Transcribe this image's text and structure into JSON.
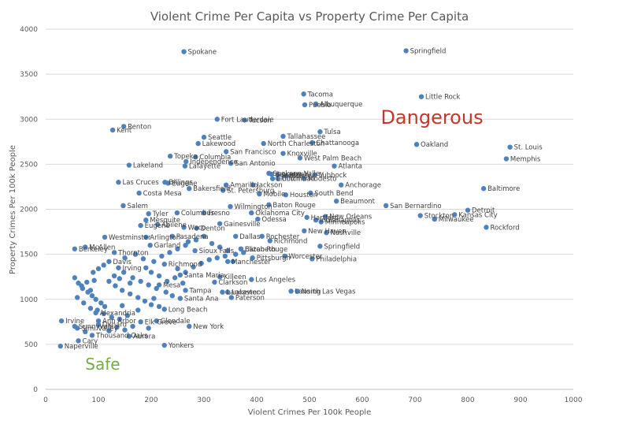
{
  "chart_data": {
    "type": "scatter",
    "title": "Violent Crime Per Capita vs Property Crime Per Capita",
    "xlabel": "Violent Crimes Per 100k People",
    "ylabel": "Property Crimes Per 100k People",
    "xlim": [
      0,
      1000
    ],
    "ylim": [
      0,
      4000
    ],
    "x_ticks": [
      0,
      100,
      200,
      300,
      400,
      500,
      600,
      700,
      800,
      900,
      1000
    ],
    "y_ticks": [
      0,
      500,
      1000,
      1500,
      2000,
      2500,
      3000,
      3500,
      4000
    ],
    "grid": "horizontal",
    "legend": "none",
    "colors": {
      "marker": "#4f81bd",
      "danger": "#c0392b",
      "safe": "#70ad47",
      "text": "#595959"
    },
    "annotations": [
      {
        "text": "Dangerous",
        "x": 635,
        "y": 2950,
        "color": "#c0392b"
      },
      {
        "text": "Safe",
        "x": 75,
        "y": 220,
        "color": "#70ad47"
      }
    ],
    "points": [
      {
        "label": "Spokane",
        "x": 262,
        "y": 3750
      },
      {
        "label": "Springfield",
        "x": 683,
        "y": 3760
      },
      {
        "label": "Tacoma",
        "x": 489,
        "y": 3280
      },
      {
        "label": "Pueblo",
        "x": 491,
        "y": 3160
      },
      {
        "label": "Albuquerque",
        "x": 512,
        "y": 3170
      },
      {
        "label": "Little Rock",
        "x": 712,
        "y": 3250
      },
      {
        "label": "Fort Lauderdale",
        "x": 325,
        "y": 3000
      },
      {
        "label": "Tucson",
        "x": 377,
        "y": 2990
      },
      {
        "label": "Renton",
        "x": 148,
        "y": 2920
      },
      {
        "label": "Kent",
        "x": 127,
        "y": 2880
      },
      {
        "label": "Tallahassee",
        "x": 450,
        "y": 2810
      },
      {
        "label": "Tulsa",
        "x": 520,
        "y": 2860
      },
      {
        "label": "Seattle",
        "x": 300,
        "y": 2800
      },
      {
        "label": "Lakewood",
        "x": 289,
        "y": 2730
      },
      {
        "label": "North Charleston",
        "x": 413,
        "y": 2730
      },
      {
        "label": "Chattanooga",
        "x": 505,
        "y": 2740
      },
      {
        "label": "Oakland",
        "x": 703,
        "y": 2720
      },
      {
        "label": "St. Louis",
        "x": 880,
        "y": 2690
      },
      {
        "label": "Memphis",
        "x": 873,
        "y": 2560
      },
      {
        "label": "San Francisco",
        "x": 342,
        "y": 2640
      },
      {
        "label": "Topeka",
        "x": 236,
        "y": 2590
      },
      {
        "label": "Columbia",
        "x": 284,
        "y": 2580
      },
      {
        "label": "Knoxville",
        "x": 450,
        "y": 2620
      },
      {
        "label": "West Palm Beach",
        "x": 482,
        "y": 2570
      },
      {
        "label": "Independence",
        "x": 266,
        "y": 2530
      },
      {
        "label": "Lakeland",
        "x": 158,
        "y": 2490
      },
      {
        "label": "Lafayette",
        "x": 264,
        "y": 2480
      },
      {
        "label": "San Antonio",
        "x": 351,
        "y": 2510
      },
      {
        "label": "Atlanta",
        "x": 547,
        "y": 2480
      },
      {
        "label": "Spokane Valley",
        "x": 423,
        "y": 2400
      },
      {
        "label": "Savannah",
        "x": 428,
        "y": 2390
      },
      {
        "label": "Austin",
        "x": 440,
        "y": 2380
      },
      {
        "label": "Mobile",
        "x": 455,
        "y": 2370
      },
      {
        "label": "Lubbock",
        "x": 510,
        "y": 2380
      },
      {
        "label": "Lincoln",
        "x": 430,
        "y": 2340
      },
      {
        "label": "Cincinnati",
        "x": 440,
        "y": 2340
      },
      {
        "label": "Modesto",
        "x": 490,
        "y": 2340
      },
      {
        "label": "Las Cruces",
        "x": 138,
        "y": 2300
      },
      {
        "label": "Billings",
        "x": 226,
        "y": 2300
      },
      {
        "label": "Eugene",
        "x": 232,
        "y": 2290
      },
      {
        "label": "Amarillo",
        "x": 342,
        "y": 2270
      },
      {
        "label": "Jackson",
        "x": 393,
        "y": 2270
      },
      {
        "label": "Anchorage",
        "x": 560,
        "y": 2270
      },
      {
        "label": "Baltimore",
        "x": 830,
        "y": 2230
      },
      {
        "label": "Bakersfield",
        "x": 272,
        "y": 2230
      },
      {
        "label": "St. Petersburg",
        "x": 336,
        "y": 2210
      },
      {
        "label": "Costa Mesa",
        "x": 177,
        "y": 2180
      },
      {
        "label": "Mobile",
        "x": 405,
        "y": 2170
      },
      {
        "label": "Houston",
        "x": 455,
        "y": 2160
      },
      {
        "label": "South Bend",
        "x": 502,
        "y": 2180
      },
      {
        "label": "Beaumont",
        "x": 551,
        "y": 2090
      },
      {
        "label": "Salem",
        "x": 147,
        "y": 2040
      },
      {
        "label": "Wilmington",
        "x": 350,
        "y": 2030
      },
      {
        "label": "Baton Rouge",
        "x": 423,
        "y": 2050
      },
      {
        "label": "San Bernardino",
        "x": 645,
        "y": 2040
      },
      {
        "label": "Detroit",
        "x": 800,
        "y": 1990
      },
      {
        "label": "Tyler",
        "x": 195,
        "y": 1950
      },
      {
        "label": "Columbus",
        "x": 249,
        "y": 1960
      },
      {
        "label": "Fresno",
        "x": 300,
        "y": 1960
      },
      {
        "label": "Oklahoma City",
        "x": 390,
        "y": 1960
      },
      {
        "label": "Stockton",
        "x": 710,
        "y": 1930
      },
      {
        "label": "Kansas City",
        "x": 775,
        "y": 1940
      },
      {
        "label": "Milwaukee",
        "x": 737,
        "y": 1890
      },
      {
        "label": "Mesquite",
        "x": 190,
        "y": 1880
      },
      {
        "label": "Odessa",
        "x": 402,
        "y": 1890
      },
      {
        "label": "Hartford",
        "x": 495,
        "y": 1910
      },
      {
        "label": "New Orleans",
        "x": 530,
        "y": 1920
      },
      {
        "label": "Indianapolis",
        "x": 512,
        "y": 1880
      },
      {
        "label": "Minneapolis",
        "x": 522,
        "y": 1860
      },
      {
        "label": "Rockford",
        "x": 835,
        "y": 1800
      },
      {
        "label": "Eugene",
        "x": 180,
        "y": 1820
      },
      {
        "label": "Abilene",
        "x": 212,
        "y": 1830
      },
      {
        "label": "Waco",
        "x": 262,
        "y": 1800
      },
      {
        "label": "Gainesville",
        "x": 330,
        "y": 1840
      },
      {
        "label": "Denton",
        "x": 286,
        "y": 1790
      },
      {
        "label": "New Haven",
        "x": 490,
        "y": 1760
      },
      {
        "label": "Nashville",
        "x": 532,
        "y": 1740
      },
      {
        "label": "Westminster",
        "x": 112,
        "y": 1690
      },
      {
        "label": "Arlington",
        "x": 190,
        "y": 1690
      },
      {
        "label": "Pasadena",
        "x": 240,
        "y": 1700
      },
      {
        "label": "Dallas",
        "x": 360,
        "y": 1700
      },
      {
        "label": "Rochester",
        "x": 410,
        "y": 1700
      },
      {
        "label": "Richmond",
        "x": 425,
        "y": 1650
      },
      {
        "label": "Springfield",
        "x": 520,
        "y": 1590
      },
      {
        "label": "McAllen",
        "x": 75,
        "y": 1580
      },
      {
        "label": "Berkeley",
        "x": 55,
        "y": 1560
      },
      {
        "label": "Garland",
        "x": 198,
        "y": 1600
      },
      {
        "label": "Elizabeth",
        "x": 370,
        "y": 1560
      },
      {
        "label": "Thornton",
        "x": 130,
        "y": 1520
      },
      {
        "label": "Sioux Falls",
        "x": 283,
        "y": 1540
      },
      {
        "label": "Worcester",
        "x": 453,
        "y": 1480
      },
      {
        "label": "Philadelphia",
        "x": 505,
        "y": 1450
      },
      {
        "label": "Manchester",
        "x": 345,
        "y": 1420
      },
      {
        "label": "Davis",
        "x": 120,
        "y": 1420
      },
      {
        "label": "Irving",
        "x": 138,
        "y": 1350
      },
      {
        "label": "Richmond",
        "x": 225,
        "y": 1390
      },
      {
        "label": "Santa Maria",
        "x": 255,
        "y": 1270
      },
      {
        "label": "Killeen",
        "x": 330,
        "y": 1250
      },
      {
        "label": "Los Angeles",
        "x": 390,
        "y": 1220
      },
      {
        "label": "Clarkson",
        "x": 320,
        "y": 1190
      },
      {
        "label": "Mesa",
        "x": 215,
        "y": 1160
      },
      {
        "label": "Tampa",
        "x": 265,
        "y": 1100
      },
      {
        "label": "Lancaster",
        "x": 335,
        "y": 1080
      },
      {
        "label": "Lakewood",
        "x": 345,
        "y": 1080
      },
      {
        "label": "Lansing",
        "x": 465,
        "y": 1090
      },
      {
        "label": "North Las Vegas",
        "x": 477,
        "y": 1090
      },
      {
        "label": "Paterson",
        "x": 352,
        "y": 1020
      },
      {
        "label": "Santa Ana",
        "x": 255,
        "y": 1010
      },
      {
        "label": "Alexandria",
        "x": 95,
        "y": 850
      },
      {
        "label": "Long Beach",
        "x": 225,
        "y": 890
      },
      {
        "label": "Ann Arbor",
        "x": 100,
        "y": 760
      },
      {
        "label": "Elk Grove",
        "x": 180,
        "y": 750
      },
      {
        "label": "Glendale",
        "x": 210,
        "y": 760
      },
      {
        "label": "Irvine",
        "x": 30,
        "y": 760
      },
      {
        "label": "Sunnyvale",
        "x": 55,
        "y": 700
      },
      {
        "label": "Oxnard",
        "x": 100,
        "y": 720
      },
      {
        "label": "New York",
        "x": 272,
        "y": 700
      },
      {
        "label": "Simi Valley",
        "x": 60,
        "y": 680
      },
      {
        "label": "Thousand Oaks",
        "x": 88,
        "y": 600
      },
      {
        "label": "Aurora",
        "x": 158,
        "y": 590
      },
      {
        "label": "Cary",
        "x": 62,
        "y": 540
      },
      {
        "label": "Naperville",
        "x": 28,
        "y": 480
      },
      {
        "label": "Yonkers",
        "x": 225,
        "y": 490
      },
      {
        "label": "Pittsburgh",
        "x": 392,
        "y": 1460
      },
      {
        "label": "Baton Rouge",
        "x": 370,
        "y": 1560
      }
    ],
    "unlabeled_points": [
      [
        55,
        1240
      ],
      [
        62,
        1180
      ],
      [
        70,
        1120
      ],
      [
        80,
        1080
      ],
      [
        88,
        1040
      ],
      [
        95,
        1000
      ],
      [
        105,
        960
      ],
      [
        112,
        920
      ],
      [
        60,
        1020
      ],
      [
        72,
        960
      ],
      [
        85,
        900
      ],
      [
        98,
        880
      ],
      [
        110,
        840
      ],
      [
        125,
        800
      ],
      [
        140,
        780
      ],
      [
        155,
        820
      ],
      [
        120,
        1200
      ],
      [
        132,
        1150
      ],
      [
        145,
        1100
      ],
      [
        160,
        1060
      ],
      [
        175,
        1020
      ],
      [
        188,
        980
      ],
      [
        200,
        940
      ],
      [
        215,
        920
      ],
      [
        130,
        1260
      ],
      [
        148,
        1300
      ],
      [
        165,
        1240
      ],
      [
        180,
        1200
      ],
      [
        195,
        1160
      ],
      [
        210,
        1120
      ],
      [
        228,
        1080
      ],
      [
        240,
        1040
      ],
      [
        150,
        1460
      ],
      [
        170,
        1500
      ],
      [
        185,
        1450
      ],
      [
        205,
        1420
      ],
      [
        220,
        1480
      ],
      [
        235,
        1520
      ],
      [
        250,
        1560
      ],
      [
        265,
        1600
      ],
      [
        270,
        1640
      ],
      [
        285,
        1660
      ],
      [
        300,
        1700
      ],
      [
        315,
        1620
      ],
      [
        330,
        1580
      ],
      [
        345,
        1540
      ],
      [
        360,
        1500
      ],
      [
        375,
        1520
      ],
      [
        250,
        1340
      ],
      [
        265,
        1300
      ],
      [
        280,
        1360
      ],
      [
        295,
        1400
      ],
      [
        310,
        1440
      ],
      [
        325,
        1460
      ],
      [
        340,
        1480
      ],
      [
        355,
        1420
      ],
      [
        90,
        1300
      ],
      [
        100,
        1340
      ],
      [
        110,
        1380
      ],
      [
        68,
        1150
      ],
      [
        78,
        1190
      ],
      [
        92,
        1210
      ],
      [
        165,
        700
      ],
      [
        195,
        680
      ],
      [
        120,
        650
      ],
      [
        135,
        690
      ],
      [
        150,
        660
      ],
      [
        75,
        640
      ],
      [
        85,
        1100
      ],
      [
        145,
        930
      ],
      [
        175,
        880
      ],
      [
        205,
        1010
      ],
      [
        230,
        1200
      ],
      [
        245,
        1240
      ],
      [
        260,
        1180
      ],
      [
        200,
        1300
      ],
      [
        215,
        1260
      ],
      [
        160,
        1180
      ],
      [
        140,
        1230
      ],
      [
        190,
        1350
      ]
    ]
  }
}
